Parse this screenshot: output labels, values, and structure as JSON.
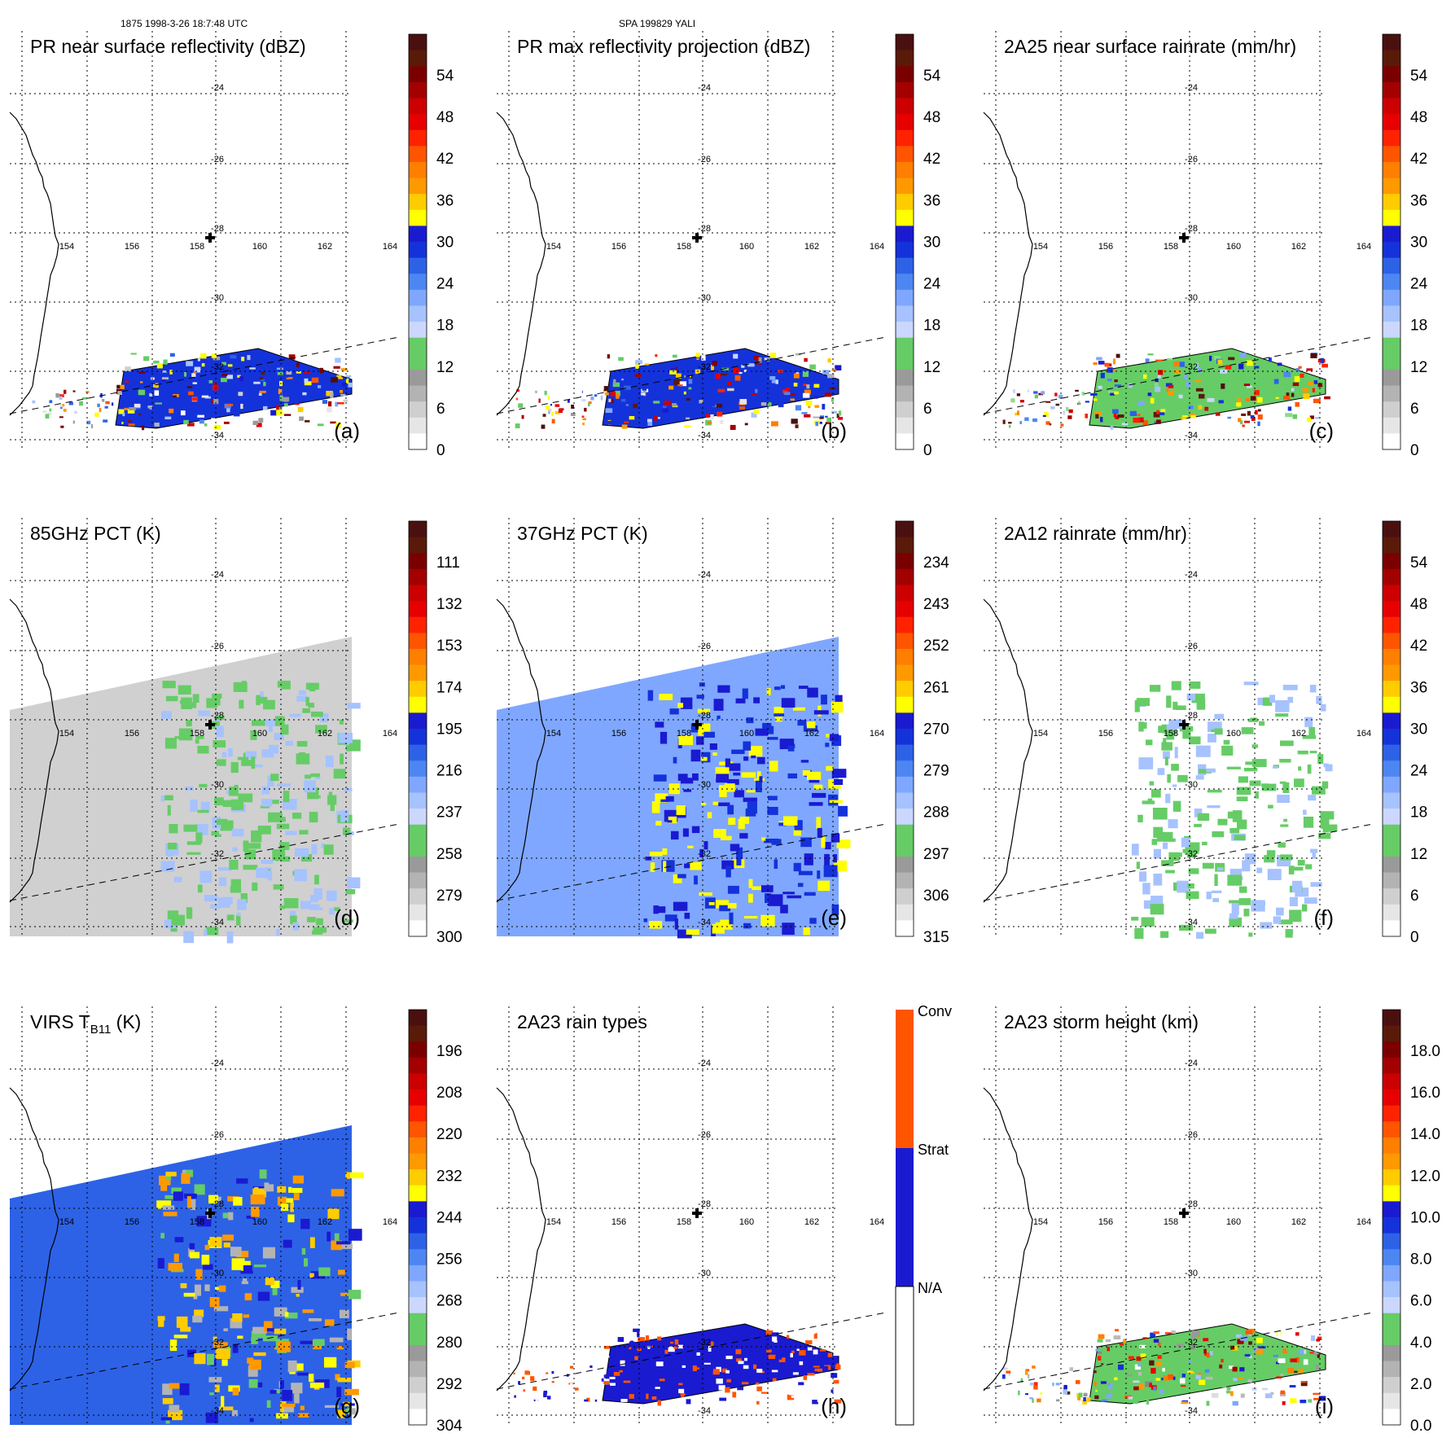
{
  "header": {
    "left": "1875 1998-3-26 18:7:48 UTC",
    "center": "SPA 199829 YALI"
  },
  "map": {
    "lon_labels": [
      "154",
      "156",
      "158",
      "160",
      "162",
      "164"
    ],
    "lat_labels": [
      "-24",
      "-26",
      "-28",
      "-30",
      "-32",
      "-34"
    ],
    "center_marker": "plus-marker"
  },
  "panels": [
    {
      "title": "PR near surface reflectivity (dBZ)",
      "letter": "(a)",
      "colorbar_ticks": [
        "54",
        "48",
        "42",
        "36",
        "30",
        "24",
        "18",
        "12",
        "6",
        "0"
      ],
      "field": "swath-low",
      "palette": "dbz"
    },
    {
      "title": "PR max reflectivity projection (dBZ)",
      "letter": "(b)",
      "colorbar_ticks": [
        "54",
        "48",
        "42",
        "36",
        "30",
        "24",
        "18",
        "12",
        "6",
        "0"
      ],
      "field": "swath-low",
      "palette": "dbz"
    },
    {
      "title": "2A25 near surface rainrate (mm/hr)",
      "letter": "(c)",
      "colorbar_ticks": [
        "54",
        "48",
        "42",
        "36",
        "30",
        "24",
        "18",
        "12",
        "6",
        "0"
      ],
      "field": "swath-low",
      "palette": "rain"
    },
    {
      "title": "85GHz PCT (K)",
      "letter": "(d)",
      "colorbar_ticks": [
        "111",
        "132",
        "153",
        "174",
        "195",
        "216",
        "237",
        "258",
        "279",
        "300"
      ],
      "field": "swath-tmi",
      "palette": "pct85"
    },
    {
      "title": "37GHz PCT (K)",
      "letter": "(e)",
      "colorbar_ticks": [
        "234",
        "243",
        "252",
        "261",
        "270",
        "279",
        "288",
        "297",
        "306",
        "315"
      ],
      "field": "swath-tmi",
      "palette": "pct37"
    },
    {
      "title": "2A12 rainrate (mm/hr)",
      "letter": "(f)",
      "colorbar_ticks": [
        "54",
        "48",
        "42",
        "36",
        "30",
        "24",
        "18",
        "12",
        "6",
        "0"
      ],
      "field": "swath-tmi",
      "palette": "rain12"
    },
    {
      "title": "VIRS T",
      "title_sub": "B11",
      "title_suffix": " (K)",
      "letter": "(g)",
      "colorbar_ticks": [
        "196",
        "208",
        "220",
        "232",
        "244",
        "256",
        "268",
        "280",
        "292",
        "304"
      ],
      "field": "swath-virs",
      "palette": "virs"
    },
    {
      "title": "2A23 rain types",
      "letter": "(h)",
      "colorbar_ticks": [
        "Conv",
        "Strat",
        "N/A"
      ],
      "field": "swath-low",
      "palette": "types"
    },
    {
      "title": "2A23 storm height (km)",
      "letter": "(i)",
      "colorbar_ticks": [
        "18.0",
        "16.0",
        "14.0",
        "12.0",
        "10.0",
        "8.0",
        "6.0",
        "4.0",
        "2.0",
        "0.0"
      ],
      "field": "swath-low",
      "palette": "height"
    }
  ],
  "colors": {
    "dbz": [
      "#ffffff",
      "#e6e6e6",
      "#cfcfcf",
      "#b3b3b3",
      "#9a9a9a",
      "#66cc66",
      "#66cc66",
      "#cbd7ff",
      "#a6c2ff",
      "#7fa7ff",
      "#4d86f2",
      "#2d62e6",
      "#1432d9",
      "#1a1ad1",
      "#ffff00",
      "#ffff00",
      "#ffcc00",
      "#ff9900",
      "#ff7f00",
      "#ff5500",
      "#ff2200",
      "#e60000",
      "#cc0000",
      "#a30000",
      "#7a0000",
      "#5a1a0a",
      "#4a1010"
    ],
    "rain": [
      "#66cc66",
      "#66cc66",
      "#88dd88",
      "#cbd7ff",
      "#a6c2ff",
      "#7fa7ff",
      "#4d86f2",
      "#2d62e6",
      "#1432d9",
      "#1a1ad1",
      "#ffff00",
      "#ffff00",
      "#ffcc00",
      "#ff9900",
      "#ff7f00",
      "#ff5500",
      "#ff2200",
      "#e60000",
      "#cc0000",
      "#a30000",
      "#7a0000",
      "#5a1a0a",
      "#4a1010"
    ],
    "height": [
      "#ffffff",
      "#dddddd",
      "#bbbbbb",
      "#999999",
      "#888888",
      "#66cc66",
      "#66cc66",
      "#cbd7ff",
      "#a6c2ff",
      "#7fa7ff",
      "#4d86f2",
      "#1432d9",
      "#1a1ad1",
      "#ffff00",
      "#ffcc00",
      "#ff9900",
      "#ff7f00",
      "#ff5500",
      "#ff2200",
      "#e60000",
      "#a30000",
      "#5a1a0a"
    ],
    "types": [
      "#ffffff",
      "#ffffff",
      "#1a1ad1",
      "#1a1ad1",
      "#ff5500",
      "#ff5500"
    ]
  }
}
